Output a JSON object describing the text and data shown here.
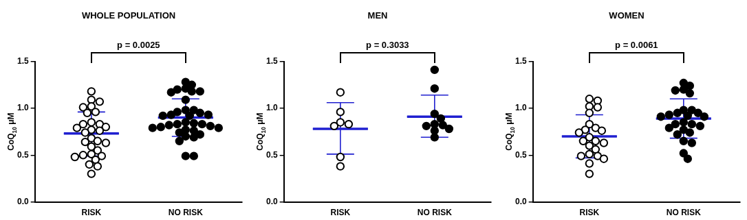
{
  "chart_data": [
    {
      "type": "scatter",
      "title": "WHOLE POPULATION",
      "ylabel": "CoQ$_{10}$ μM",
      "categories": [
        "RISK",
        "NO RISK"
      ],
      "ylim": [
        0,
        1.5
      ],
      "yticks": [
        {
          "value": 0,
          "label": "0.0"
        },
        {
          "value": 0.5,
          "label": "0.5"
        },
        {
          "value": 1,
          "label": "1.0"
        },
        {
          "value": 1.5,
          "label": "1.5"
        }
      ],
      "grid": false,
      "legend": false,
      "marker": "circle",
      "annotations": [
        "p = 0.0025"
      ],
      "series": [
        {
          "color": "#000000",
          "x": [
            "RISK",
            "RISK",
            "RISK",
            "RISK",
            "RISK",
            "RISK",
            "RISK",
            "RISK",
            "RISK",
            "RISK",
            "RISK",
            "RISK",
            "RISK",
            "RISK",
            "RISK",
            "RISK",
            "RISK",
            "RISK",
            "RISK",
            "RISK",
            "RISK",
            "RISK",
            "RISK",
            "RISK",
            "RISK",
            "RISK",
            "RISK",
            "RISK",
            "RISK"
          ],
          "values": [
            1.18,
            1.09,
            1.07,
            1.02,
            1.01,
            0.96,
            0.95,
            0.85,
            0.83,
            0.83,
            0.8,
            0.79,
            0.77,
            0.76,
            0.74,
            0.68,
            0.65,
            0.64,
            0.63,
            0.59,
            0.55,
            0.51,
            0.5,
            0.49,
            0.48,
            0.45,
            0.4,
            0.38,
            0.3
          ]
        },
        {
          "color": "#000000",
          "x": [
            "NO RISK",
            "NO RISK",
            "NO RISK",
            "NO RISK",
            "NO RISK",
            "NO RISK",
            "NO RISK",
            "NO RISK",
            "NO RISK",
            "NO RISK",
            "NO RISK",
            "NO RISK",
            "NO RISK",
            "NO RISK",
            "NO RISK",
            "NO RISK",
            "NO RISK",
            "NO RISK",
            "NO RISK",
            "NO RISK",
            "NO RISK",
            "NO RISK",
            "NO RISK",
            "NO RISK",
            "NO RISK",
            "NO RISK",
            "NO RISK",
            "NO RISK",
            "NO RISK",
            "NO RISK",
            "NO RISK",
            "NO RISK",
            "NO RISK",
            "NO RISK"
          ],
          "values": [
            1.28,
            1.25,
            1.21,
            1.2,
            1.18,
            1.18,
            1.17,
            1.09,
            0.98,
            0.98,
            0.96,
            0.95,
            0.93,
            0.93,
            0.92,
            0.92,
            0.85,
            0.84,
            0.83,
            0.83,
            0.82,
            0.81,
            0.8,
            0.79,
            0.79,
            0.77,
            0.76,
            0.74,
            0.72,
            0.7,
            0.69,
            0.65,
            0.49,
            0.49
          ]
        },
        {
          "type": "box",
          "color": "#1f1fd0",
          "boxes": [
            {
              "low": 0.49,
              "q1": 0.73,
              "median": 0.73,
              "q3": 0.73,
              "high": 0.96
            },
            {
              "low": 0.7,
              "q1": 0.9,
              "median": 0.9,
              "q3": 0.9,
              "high": 1.1
            }
          ]
        }
      ]
    },
    {
      "type": "scatter",
      "title": "MEN",
      "ylabel": "CoQ$_{10}$ μM",
      "categories": [
        "RISK",
        "NO RISK"
      ],
      "ylim": [
        0,
        1.5
      ],
      "yticks": [
        {
          "value": 0,
          "label": "0.0"
        },
        {
          "value": 0.5,
          "label": "0.5"
        },
        {
          "value": 1,
          "label": "1.0"
        },
        {
          "value": 1.5,
          "label": "1.5"
        }
      ],
      "grid": false,
      "legend": false,
      "marker": "circle",
      "annotations": [
        "p = 0.3033"
      ],
      "series": [
        {
          "color": "#000000",
          "x": [
            "RISK",
            "RISK",
            "RISK",
            "RISK",
            "RISK",
            "RISK",
            "RISK"
          ],
          "values": [
            1.17,
            0.96,
            0.85,
            0.83,
            0.81,
            0.48,
            0.38
          ]
        },
        {
          "color": "#000000",
          "x": [
            "NO RISK",
            "NO RISK",
            "NO RISK",
            "NO RISK",
            "NO RISK",
            "NO RISK",
            "NO RISK",
            "NO RISK",
            "NO RISK",
            "NO RISK"
          ],
          "values": [
            1.41,
            1.21,
            0.94,
            0.89,
            0.83,
            0.82,
            0.81,
            0.78,
            0.76,
            0.69
          ]
        },
        {
          "type": "box",
          "color": "#1f1fd0",
          "boxes": [
            {
              "low": 0.51,
              "q1": 0.78,
              "median": 0.78,
              "q3": 0.78,
              "high": 1.06
            },
            {
              "low": 0.69,
              "q1": 0.91,
              "median": 0.91,
              "q3": 0.91,
              "high": 1.14
            }
          ]
        }
      ]
    },
    {
      "type": "scatter",
      "title": "WOMEN",
      "ylabel": "CoQ$_{10}$ μM",
      "categories": [
        "RISK",
        "NO RISK"
      ],
      "ylim": [
        0,
        1.5
      ],
      "yticks": [
        {
          "value": 0,
          "label": "0.0"
        },
        {
          "value": 0.5,
          "label": "0.5"
        },
        {
          "value": 1,
          "label": "1.0"
        },
        {
          "value": 1.5,
          "label": "1.5"
        }
      ],
      "grid": false,
      "legend": false,
      "marker": "circle",
      "annotations": [
        "p = 0.0061"
      ],
      "series": [
        {
          "color": "#000000",
          "x": [
            "RISK",
            "RISK",
            "RISK",
            "RISK",
            "RISK",
            "RISK",
            "RISK",
            "RISK",
            "RISK",
            "RISK",
            "RISK",
            "RISK",
            "RISK",
            "RISK",
            "RISK",
            "RISK",
            "RISK",
            "RISK",
            "RISK",
            "RISK",
            "RISK",
            "RISK"
          ],
          "values": [
            1.1,
            1.08,
            1.02,
            1.01,
            0.95,
            0.83,
            0.79,
            0.77,
            0.76,
            0.74,
            0.69,
            0.65,
            0.65,
            0.63,
            0.6,
            0.56,
            0.51,
            0.49,
            0.49,
            0.46,
            0.41,
            0.3
          ]
        },
        {
          "color": "#000000",
          "x": [
            "NO RISK",
            "NO RISK",
            "NO RISK",
            "NO RISK",
            "NO RISK",
            "NO RISK",
            "NO RISK",
            "NO RISK",
            "NO RISK",
            "NO RISK",
            "NO RISK",
            "NO RISK",
            "NO RISK",
            "NO RISK",
            "NO RISK",
            "NO RISK",
            "NO RISK",
            "NO RISK",
            "NO RISK",
            "NO RISK",
            "NO RISK",
            "NO RISK",
            "NO RISK",
            "NO RISK",
            "NO RISK"
          ],
          "values": [
            1.27,
            1.24,
            1.2,
            1.19,
            1.16,
            0.98,
            0.98,
            0.95,
            0.95,
            0.93,
            0.92,
            0.91,
            0.91,
            0.85,
            0.83,
            0.83,
            0.81,
            0.79,
            0.77,
            0.74,
            0.72,
            0.65,
            0.63,
            0.52,
            0.46
          ]
        },
        {
          "type": "box",
          "color": "#1f1fd0",
          "boxes": [
            {
              "low": 0.47,
              "q1": 0.7,
              "median": 0.7,
              "q3": 0.7,
              "high": 0.93
            },
            {
              "low": 0.68,
              "q1": 0.89,
              "median": 0.89,
              "q3": 0.89,
              "high": 1.1
            }
          ]
        }
      ]
    }
  ]
}
